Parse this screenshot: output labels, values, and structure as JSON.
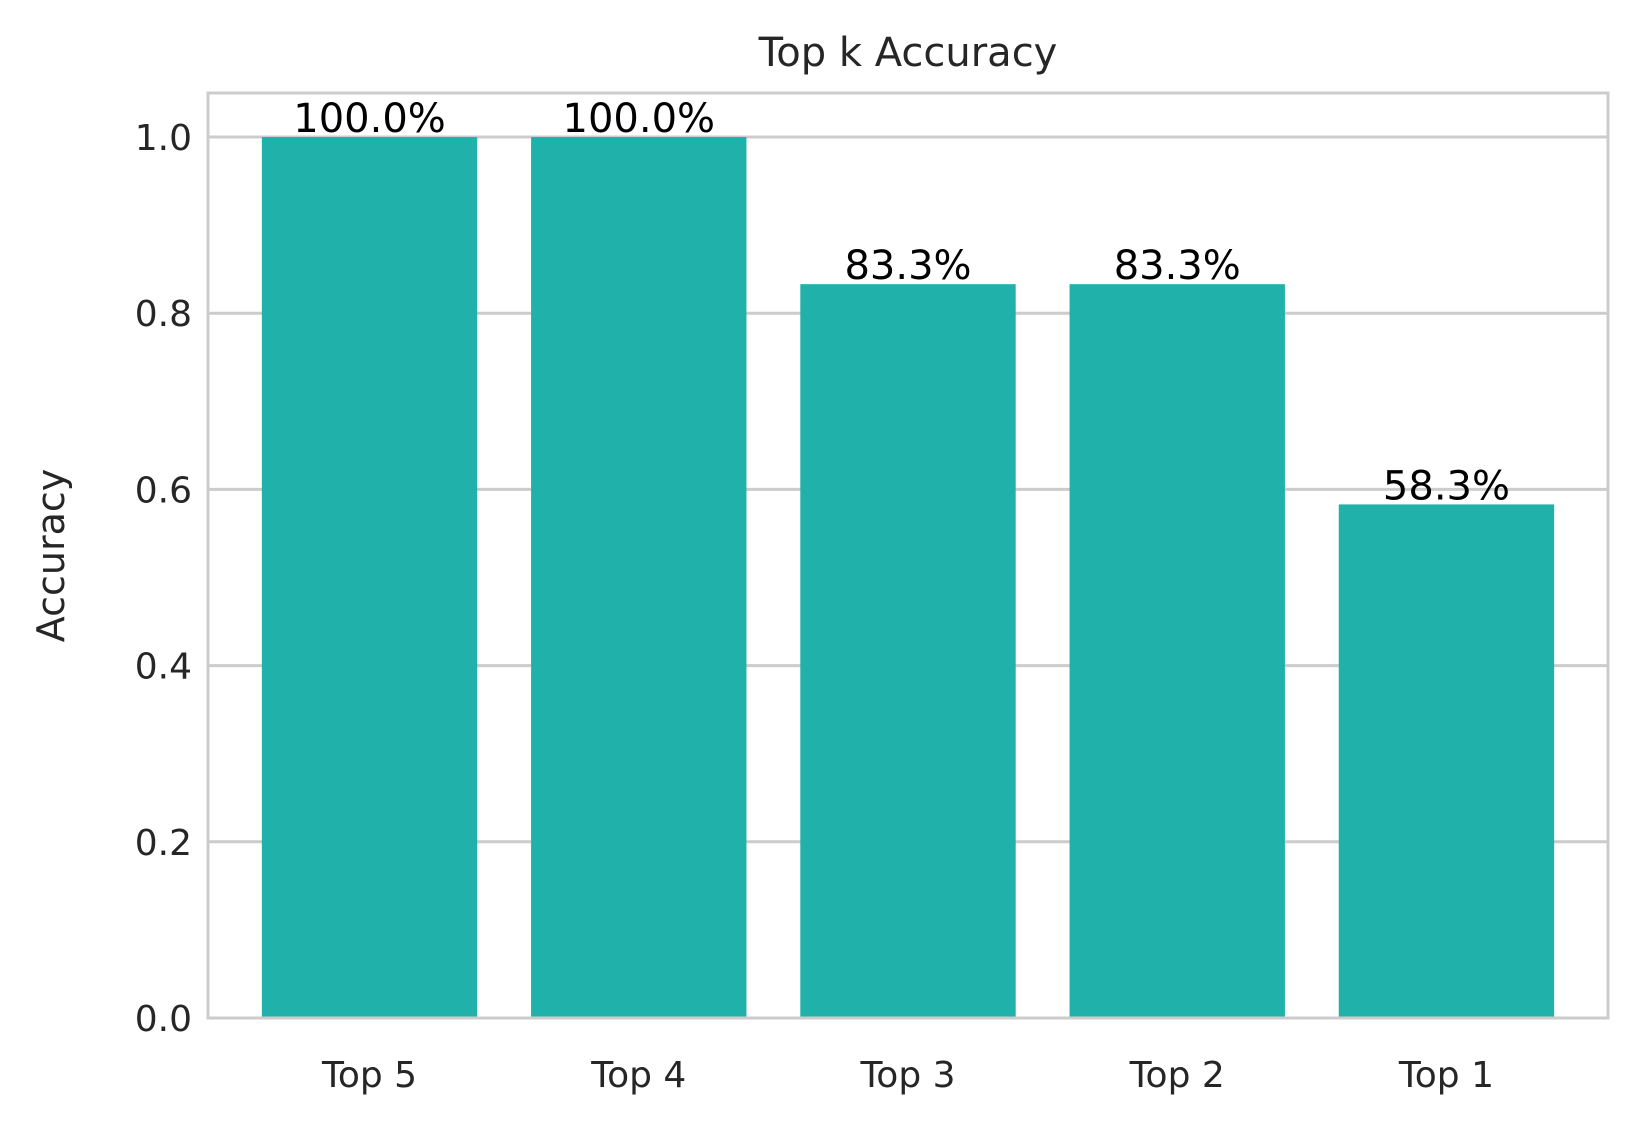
{
  "chart_data": {
    "type": "bar",
    "title": "Top k Accuracy",
    "xlabel": "",
    "ylabel": "Accuracy",
    "categories": [
      "Top 5",
      "Top 4",
      "Top 3",
      "Top 2",
      "Top 1"
    ],
    "values": [
      1.0,
      1.0,
      0.833,
      0.833,
      0.583
    ],
    "data_labels": [
      "100.0%",
      "100.0%",
      "83.3%",
      "83.3%",
      "58.3%"
    ],
    "ylim": [
      0,
      1.05
    ],
    "yticks": [
      0.0,
      0.2,
      0.4,
      0.6,
      0.8,
      1.0
    ],
    "ytick_labels": [
      "0.0",
      "0.2",
      "0.4",
      "0.6",
      "0.8",
      "1.0"
    ],
    "grid": "horizontal",
    "legend": "none",
    "colors": {
      "bar": "#20b2aa",
      "grid": "#cccccc",
      "frame": "#cccccc",
      "text": "#262626",
      "data_label": "#000000",
      "background": "#ffffff"
    }
  }
}
